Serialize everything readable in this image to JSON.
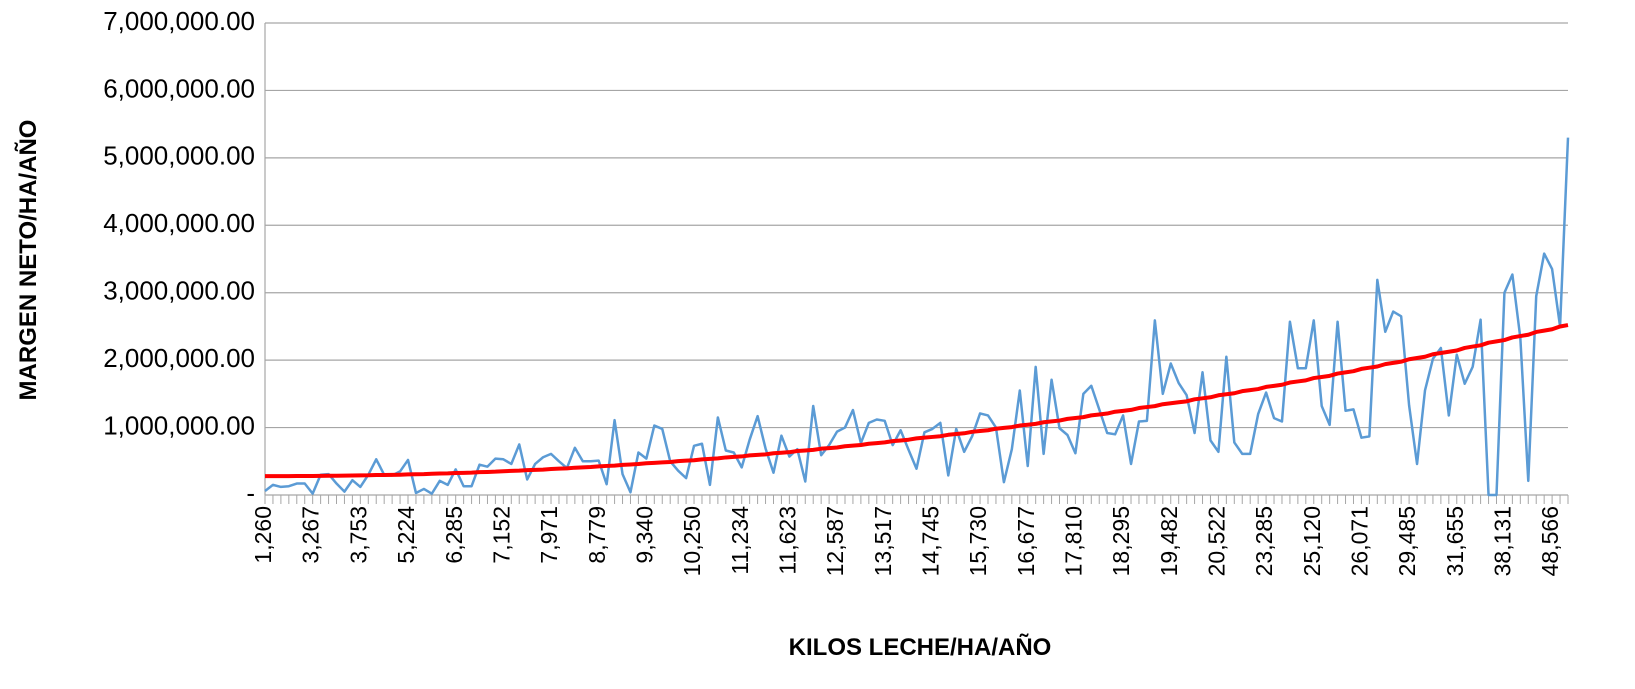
{
  "chart_data": {
    "type": "line",
    "xlabel": "KILOS LECHE/HA/AÑO",
    "ylabel": "MARGEN NETO/HA/AÑO",
    "categories": [
      "1,260",
      null,
      null,
      null,
      null,
      null,
      "3,267",
      null,
      null,
      null,
      null,
      null,
      "3,753",
      null,
      null,
      null,
      null,
      null,
      "5,224",
      null,
      null,
      null,
      null,
      null,
      "6,285",
      null,
      null,
      null,
      null,
      null,
      "7,152",
      null,
      null,
      null,
      null,
      null,
      "7,971",
      null,
      null,
      null,
      null,
      null,
      "8,779",
      null,
      null,
      null,
      null,
      null,
      "9,340",
      null,
      null,
      null,
      null,
      null,
      "10,250",
      null,
      null,
      null,
      null,
      null,
      "11,234",
      null,
      null,
      null,
      null,
      null,
      "11,623",
      null,
      null,
      null,
      null,
      null,
      "12,587",
      null,
      null,
      null,
      null,
      null,
      "13,517",
      null,
      null,
      null,
      null,
      null,
      "14,745",
      null,
      null,
      null,
      null,
      null,
      "15,730",
      null,
      null,
      null,
      null,
      null,
      "16,677",
      null,
      null,
      null,
      null,
      null,
      "17,810",
      null,
      null,
      null,
      null,
      null,
      "18,295",
      null,
      null,
      null,
      null,
      null,
      "19,482",
      null,
      null,
      null,
      null,
      null,
      "20,522",
      null,
      null,
      null,
      null,
      null,
      "23,285",
      null,
      null,
      null,
      null,
      null,
      "25,120",
      null,
      null,
      null,
      null,
      null,
      "26,071",
      null,
      null,
      null,
      null,
      null,
      "29,485",
      null,
      null,
      null,
      null,
      null,
      "31,655",
      null,
      null,
      null,
      null,
      null,
      "38,131",
      null,
      null,
      null,
      null,
      null,
      "48,566",
      null,
      null
    ],
    "series": [
      {
        "color": "#5b9bd5",
        "values": [
          60000,
          150000,
          120000,
          130000,
          170000,
          170000,
          20000,
          300000,
          310000,
          170000,
          50000,
          220000,
          120000,
          300000,
          530000,
          300000,
          290000,
          350000,
          520000,
          30000,
          90000,
          20000,
          210000,
          150000,
          380000,
          130000,
          130000,
          450000,
          420000,
          540000,
          530000,
          460000,
          750000,
          230000,
          460000,
          560000,
          610000,
          500000,
          400000,
          700000,
          500000,
          500000,
          510000,
          160000,
          1110000,
          310000,
          40000,
          630000,
          540000,
          1030000,
          980000,
          500000,
          360000,
          250000,
          730000,
          760000,
          150000,
          1150000,
          660000,
          630000,
          410000,
          820000,
          1170000,
          690000,
          330000,
          880000,
          570000,
          680000,
          200000,
          1320000,
          590000,
          740000,
          940000,
          1000000,
          1260000,
          770000,
          1070000,
          1120000,
          1100000,
          740000,
          960000,
          670000,
          390000,
          930000,
          980000,
          1070000,
          290000,
          980000,
          640000,
          870000,
          1210000,
          1180000,
          1000000,
          190000,
          680000,
          1550000,
          430000,
          1900000,
          610000,
          1710000,
          990000,
          890000,
          620000,
          1500000,
          1620000,
          1270000,
          920000,
          900000,
          1180000,
          460000,
          1090000,
          1100000,
          2590000,
          1500000,
          1950000,
          1660000,
          1480000,
          920000,
          1820000,
          810000,
          640000,
          2050000,
          780000,
          610000,
          610000,
          1200000,
          1520000,
          1140000,
          1090000,
          2570000,
          1880000,
          1880000,
          2590000,
          1320000,
          1040000,
          2570000,
          1250000,
          1270000,
          850000,
          870000,
          3190000,
          2420000,
          2720000,
          2650000,
          1330000,
          460000,
          1550000,
          2020000,
          2180000,
          1180000,
          2080000,
          1650000,
          1900000,
          2600000,
          0,
          0,
          3000000,
          3270000,
          2330000,
          210000,
          2950000,
          3580000,
          3350000,
          2500000,
          5300000
        ]
      },
      {
        "color": "#ff0000",
        "values": [
          280000,
          280000,
          280000,
          280000,
          281000,
          282000,
          282000,
          283000,
          285000,
          286000,
          287000,
          289000,
          291000,
          292000,
          296000,
          297000,
          299000,
          301000,
          305000,
          308000,
          310000,
          315000,
          318000,
          320000,
          326000,
          329000,
          332000,
          339000,
          342000,
          346000,
          353000,
          357000,
          361000,
          369000,
          373000,
          377000,
          386000,
          391000,
          395000,
          405000,
          410000,
          415000,
          425000,
          431000,
          436000,
          447000,
          453000,
          459000,
          471000,
          477000,
          483000,
          489000,
          502000,
          509000,
          515000,
          529000,
          536000,
          543000,
          557000,
          565000,
          572000,
          587000,
          595000,
          603000,
          619000,
          627000,
          635000,
          652000,
          660000,
          669000,
          687000,
          695000,
          704000,
          723000,
          732000,
          741000,
          760000,
          770000,
          780000,
          799000,
          809000,
          820000,
          840000,
          851000,
          861000,
          872000,
          893000,
          904000,
          915000,
          937000,
          949000,
          960000,
          983000,
          995000,
          1007000,
          1030000,
          1042000,
          1055000,
          1079000,
          1092000,
          1104000,
          1129000,
          1142000,
          1155000,
          1181000,
          1194000,
          1208000,
          1235000,
          1248000,
          1262000,
          1290000,
          1304000,
          1318000,
          1346000,
          1360000,
          1375000,
          1389000,
          1419000,
          1434000,
          1449000,
          1479000,
          1494000,
          1509000,
          1540000,
          1556000,
          1571000,
          1603000,
          1619000,
          1635000,
          1668000,
          1684000,
          1700000,
          1734000,
          1750000,
          1767000,
          1801000,
          1818000,
          1836000,
          1870000,
          1888000,
          1906000,
          1941000,
          1959000,
          1977000,
          2013000,
          2032000,
          2050000,
          2087000,
          2106000,
          2125000,
          2143000,
          2181000,
          2201000,
          2220000,
          2259000,
          2278000,
          2298000,
          2337000,
          2357000,
          2377000,
          2418000,
          2438000,
          2458000,
          2499000,
          2520000
        ]
      }
    ],
    "ylim": [
      0,
      7000000
    ],
    "yticks": [
      {
        "value": 0,
        "label": "-"
      },
      {
        "value": 1000000,
        "label": "1,000,000.00"
      },
      {
        "value": 2000000,
        "label": "2,000,000.00"
      },
      {
        "value": 3000000,
        "label": "3,000,000.00"
      },
      {
        "value": 4000000,
        "label": "4,000,000.00"
      },
      {
        "value": 5000000,
        "label": "5,000,000.00"
      },
      {
        "value": 6000000,
        "label": "6,000,000.00"
      },
      {
        "value": 7000000,
        "label": "7,000,000.00"
      }
    ],
    "grid": true
  }
}
